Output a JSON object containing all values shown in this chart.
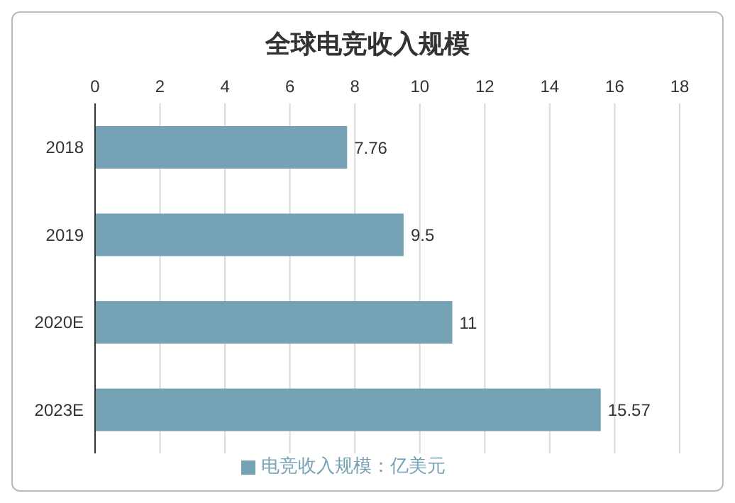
{
  "chart_data": {
    "type": "bar",
    "orientation": "horizontal",
    "title": "全球电竞收入规模",
    "categories": [
      "2018",
      "2019",
      "2020E",
      "2023E"
    ],
    "series": [
      {
        "name": "电竞收入规模：亿美元",
        "color": "#75a3b5",
        "values": [
          7.76,
          9.5,
          11,
          15.57
        ]
      }
    ],
    "xlim": [
      0,
      18
    ],
    "xticks": [
      0,
      2,
      4,
      6,
      8,
      10,
      12,
      14,
      16,
      18
    ],
    "grid": "x",
    "legend": "bottom",
    "data_labels": true
  }
}
